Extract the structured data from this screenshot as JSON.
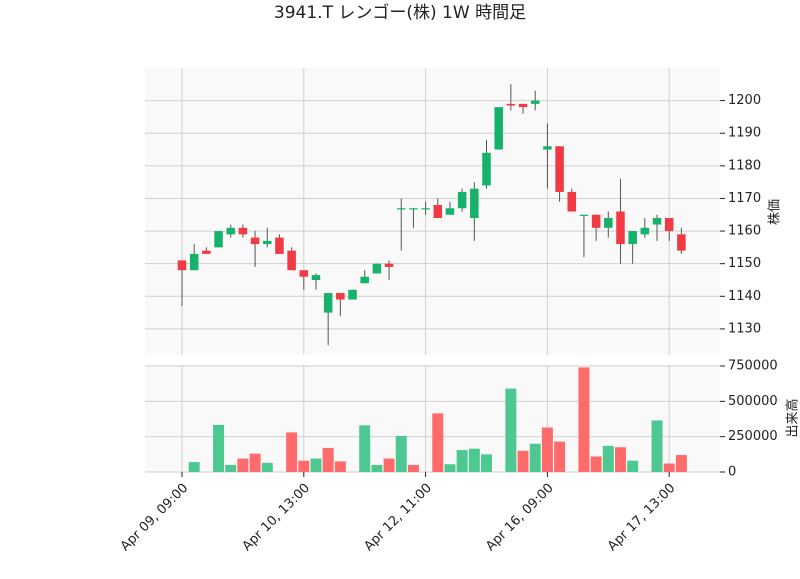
{
  "chart_data": {
    "type": "candlestick",
    "title": "3941.T レンゴー(株) 1W 時間足",
    "ylabel": "株価",
    "categories": [
      "Apr 09, 09:00",
      null,
      null,
      null,
      null,
      null,
      null,
      null,
      null,
      null,
      "Apr 10, 13:00",
      null,
      null,
      null,
      null,
      null,
      null,
      null,
      null,
      null,
      "Apr 12, 11:00",
      null,
      null,
      null,
      null,
      null,
      null,
      null,
      null,
      null,
      "Apr 16, 09:00",
      null,
      null,
      null,
      null,
      null,
      null,
      null,
      null,
      null,
      "Apr 17, 13:00",
      null
    ],
    "open": [
      1151,
      1148,
      1154,
      1155,
      1159,
      1161,
      1158,
      1156,
      1158,
      1154,
      1148,
      1145,
      1135,
      1141,
      1139,
      1144,
      1147,
      1150,
      1167,
      1167,
      1167,
      1168,
      1165,
      1167,
      1164,
      1174,
      1185,
      1199,
      1199,
      1199,
      1185,
      1186,
      1172,
      1165,
      1165,
      1161,
      1166,
      1156,
      1159,
      1162,
      1164,
      1159
    ],
    "high": [
      1151,
      1156,
      1155,
      1160,
      1162,
      1162,
      1160,
      1161,
      1159,
      1155,
      1148,
      1147,
      1141,
      1141,
      1142,
      1148,
      1150,
      1151,
      1170,
      1167,
      1169,
      1170,
      1169,
      1173,
      1175,
      1188,
      1198,
      1205,
      1199,
      1203,
      1193,
      1186,
      1173,
      1165,
      1165,
      1166,
      1176,
      1160,
      1164,
      1165,
      1164,
      1161
    ],
    "low": [
      1137,
      1148,
      1153,
      1155,
      1158,
      1158,
      1149,
      1155,
      1153,
      1148,
      1142,
      1142,
      1125,
      1134,
      1139,
      1144,
      1147,
      1145,
      1154,
      1161,
      1165,
      1164,
      1165,
      1166,
      1157,
      1173,
      1185,
      1197,
      1196,
      1197,
      1173,
      1169,
      1166,
      1152,
      1157,
      1158,
      1150,
      1150,
      1158,
      1157,
      1157,
      1153
    ],
    "close": [
      1148,
      1153,
      1153,
      1160,
      1161,
      1159,
      1156,
      1157,
      1153,
      1148,
      1146,
      1146.5,
      1141,
      1139,
      1142,
      1146,
      1150,
      1149,
      1167,
      1167,
      1167,
      1164,
      1167,
      1172,
      1173,
      1184,
      1198,
      1198.5,
      1198,
      1200,
      1186,
      1172,
      1166,
      1165,
      1161,
      1164,
      1156,
      1160,
      1161,
      1164,
      1160,
      1154
    ],
    "ylim": [
      1122,
      1210
    ],
    "yticks": [
      1130,
      1140,
      1150,
      1160,
      1170,
      1180,
      1190,
      1200
    ],
    "up_color": "#17b26a",
    "down_color": "#f23a45",
    "volume": {
      "ylabel": "出来高",
      "values": [
        0,
        70000,
        0,
        333000,
        50000,
        95000,
        130000,
        65000,
        0,
        280000,
        80000,
        95000,
        170000,
        75000,
        0,
        330000,
        50000,
        95000,
        255000,
        50000,
        0,
        415000,
        55000,
        155000,
        165000,
        125000,
        0,
        590000,
        150000,
        200000,
        315000,
        215000,
        0,
        740000,
        110000,
        185000,
        175000,
        80000,
        0,
        365000,
        60000,
        120000
      ],
      "ylim": [
        0,
        757000
      ],
      "yticks": [
        0,
        250000,
        500000,
        750000
      ],
      "up_color": "#4dc890",
      "down_color": "#ff6b6b"
    },
    "grid": true,
    "panel_color": "#f9f9f9"
  }
}
